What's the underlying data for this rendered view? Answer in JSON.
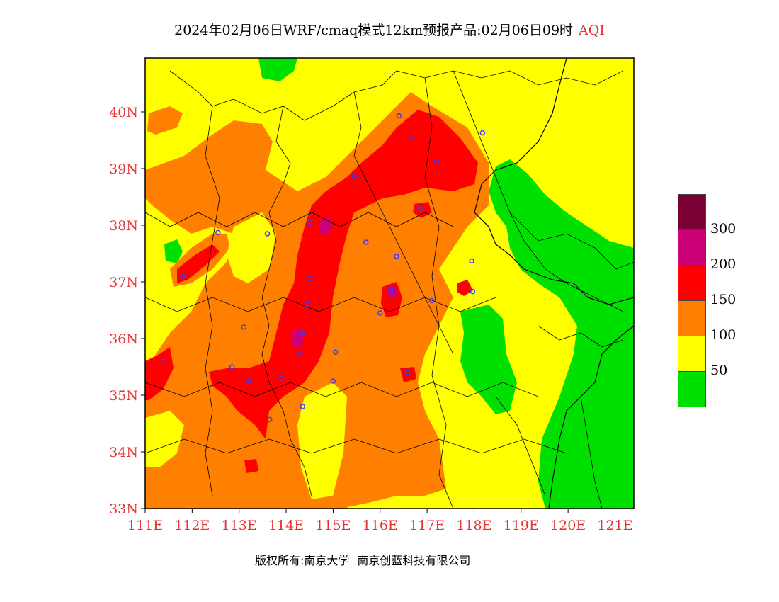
{
  "header": {
    "title": "2024年02月06日WRF/cmaq模式12km预报产品:02月06日09时",
    "variable": "AQI"
  },
  "map": {
    "lat_labels": [
      "40N",
      "39N",
      "38N",
      "37N",
      "36N",
      "35N",
      "34N",
      "33N"
    ],
    "lon_labels": [
      "111E",
      "112E",
      "113E",
      "114E",
      "115E",
      "116E",
      "117E",
      "118E",
      "119E",
      "120E",
      "121E"
    ],
    "lat_range": [
      33,
      40.95
    ],
    "lon_range": [
      111,
      121.4
    ],
    "axis_color": "#e8312f",
    "station_color": "#3b3bff"
  },
  "legend": {
    "levels": [
      {
        "label": "300",
        "color": "#7a0033"
      },
      {
        "label": "200",
        "color": "#cc0077"
      },
      {
        "label": "150",
        "color": "#ff0000"
      },
      {
        "label": "100",
        "color": "#ff8000"
      },
      {
        "label": "50",
        "color": "#ffff00"
      },
      {
        "label": "",
        "color": "#00e000"
      }
    ]
  },
  "footer": {
    "copyright_left": "版权所有:南京大学",
    "copyright_right": "南京创蓝科技有限公司"
  }
}
